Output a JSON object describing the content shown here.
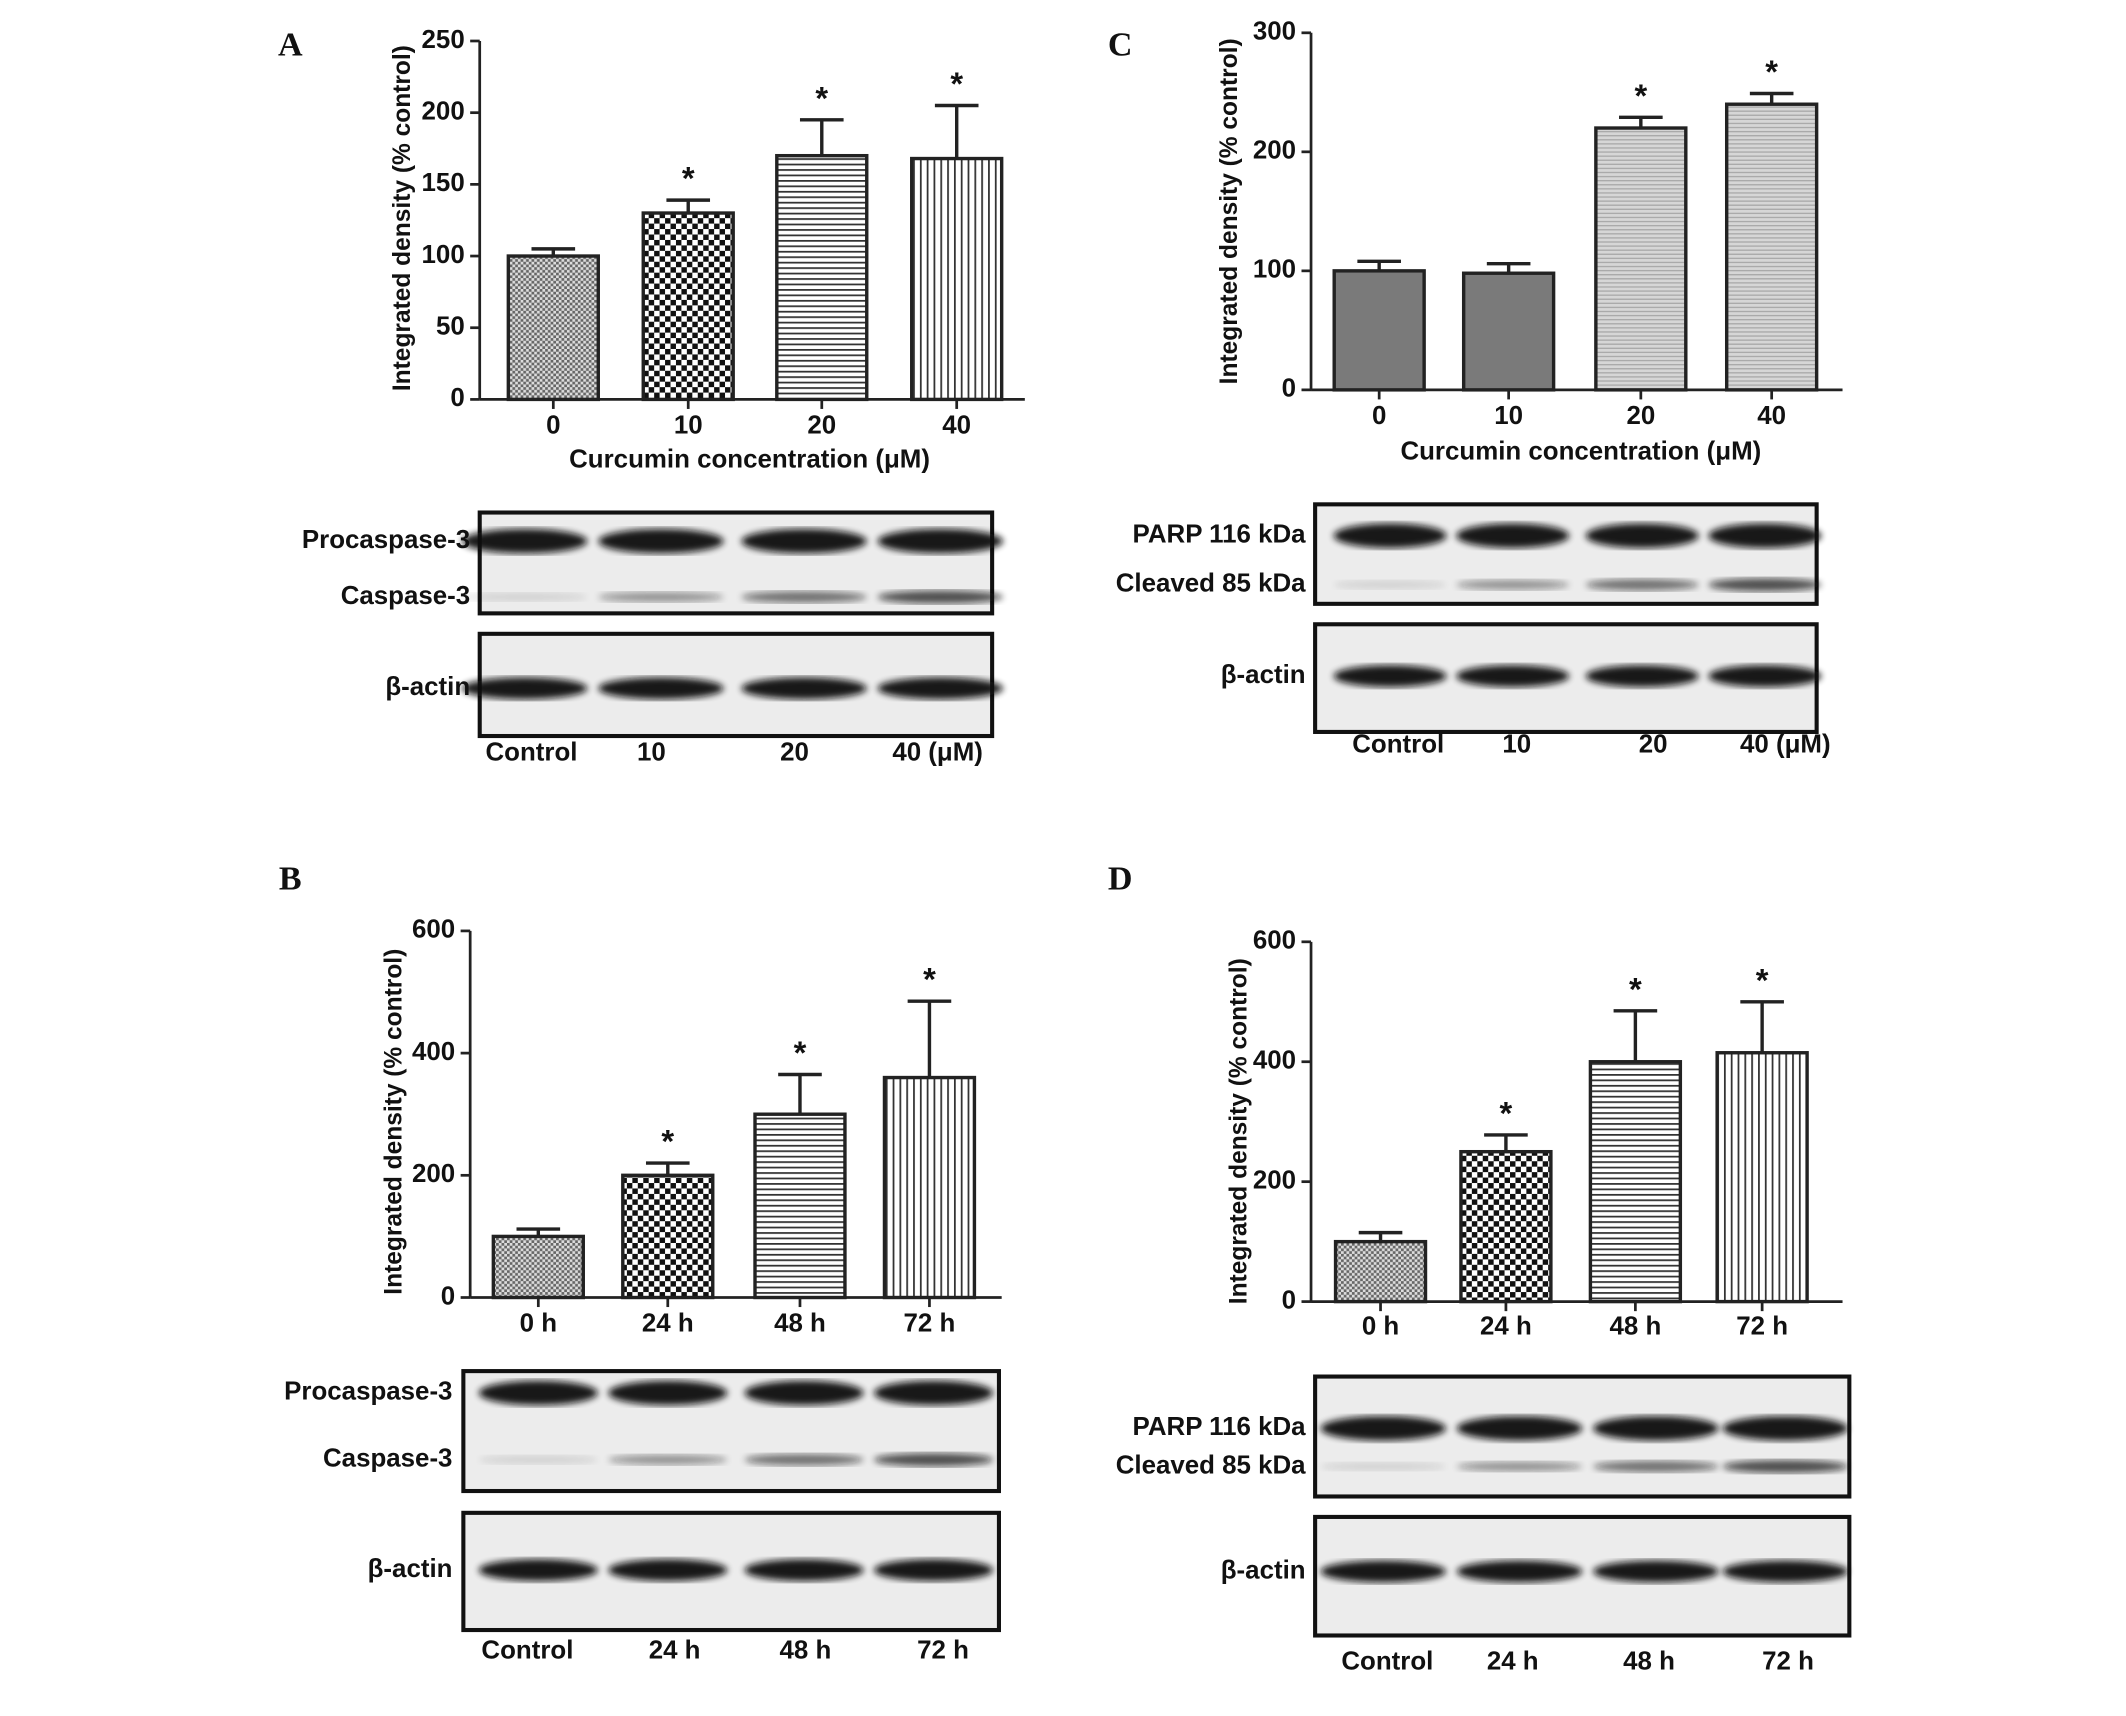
{
  "chart_data": [
    {
      "type": "bar",
      "panel": "A",
      "categories": [
        "0",
        "10",
        "20",
        "40"
      ],
      "values": [
        100,
        130,
        170,
        168
      ],
      "errors": [
        5,
        9,
        25,
        37
      ],
      "annotations": [
        null,
        "*",
        "*",
        "*"
      ],
      "fills": [
        "fine-checker",
        "checker",
        "horizontal",
        "vertical"
      ],
      "xlabel": "Curcumin concentration (μM)",
      "ylabel": "Integrated density (% control)",
      "ylim": [
        0,
        250
      ],
      "yticks": [
        0,
        50,
        100,
        150,
        200,
        250
      ],
      "blots": [
        [
          "Procaspase-3",
          "Caspase-3"
        ],
        [
          "β-actin"
        ]
      ],
      "lanes": [
        "Control",
        "10",
        "20",
        "40 (μM)"
      ]
    },
    {
      "type": "bar",
      "panel": "C",
      "categories": [
        "0",
        "10",
        "20",
        "40"
      ],
      "values": [
        100,
        98,
        220,
        240
      ],
      "errors": [
        8,
        8,
        9,
        9
      ],
      "annotations": [
        null,
        null,
        "*",
        "*"
      ],
      "fills": [
        "gray",
        "gray",
        "light-horizontal",
        "light-horizontal"
      ],
      "xlabel": "Curcumin concentration (μM)",
      "ylabel": "Integrated density (% control)",
      "ylim": [
        0,
        300
      ],
      "yticks": [
        0,
        100,
        200,
        300
      ],
      "blots": [
        [
          "PARP 116 kDa",
          "Cleaved 85 kDa"
        ],
        [
          "β-actin"
        ]
      ],
      "lanes": [
        "Control",
        "10",
        "20",
        "40 (μM)"
      ]
    },
    {
      "type": "bar",
      "panel": "B",
      "categories": [
        "0 h",
        "24 h",
        "48 h",
        "72 h"
      ],
      "values": [
        100,
        200,
        300,
        360
      ],
      "errors": [
        12,
        20,
        65,
        125
      ],
      "annotations": [
        null,
        "*",
        "*",
        "*"
      ],
      "fills": [
        "fine-checker",
        "checker",
        "horizontal",
        "vertical"
      ],
      "ylabel": "Integrated density (% control)",
      "ylim": [
        0,
        600
      ],
      "yticks": [
        0,
        200,
        400,
        600
      ],
      "blots": [
        [
          "Procaspase-3",
          "Caspase-3"
        ],
        [
          "β-actin"
        ]
      ],
      "lanes": [
        "Control",
        "24 h",
        "48 h",
        "72 h"
      ]
    },
    {
      "type": "bar",
      "panel": "D",
      "categories": [
        "0 h",
        "24 h",
        "48 h",
        "72 h"
      ],
      "values": [
        100,
        250,
        400,
        415
      ],
      "errors": [
        15,
        28,
        85,
        85
      ],
      "annotations": [
        null,
        "*",
        "*",
        "*"
      ],
      "fills": [
        "fine-checker",
        "checker",
        "horizontal",
        "vertical"
      ],
      "ylabel": "Integrated density (% control)",
      "ylim": [
        0,
        600
      ],
      "yticks": [
        0,
        200,
        400,
        600
      ],
      "blots": [
        [
          "PARP 116 kDa",
          "Cleaved 85 kDa"
        ],
        [
          "β-actin"
        ]
      ],
      "lanes": [
        "Control",
        "24 h",
        "48 h",
        "72 h"
      ]
    }
  ]
}
